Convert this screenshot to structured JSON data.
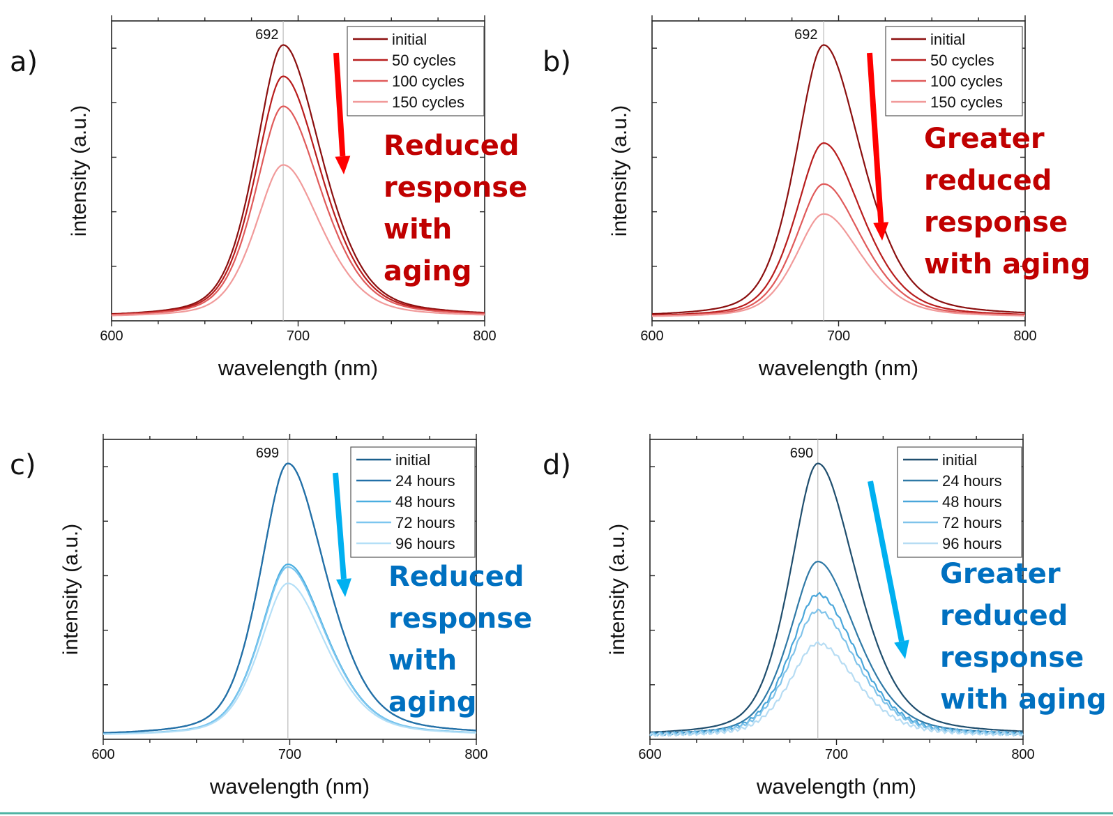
{
  "panels": [
    {
      "letter": "a)",
      "peak_label": "692",
      "note_lines": [
        "Reduced",
        "response",
        "with",
        "aging"
      ],
      "note_color": "#c00000",
      "arrow_color": "#ff0000"
    },
    {
      "letter": "b)",
      "peak_label": "692",
      "note_lines": [
        "Greater",
        "reduced",
        "response",
        "with aging"
      ],
      "note_color": "#c00000",
      "arrow_color": "#ff0000"
    },
    {
      "letter": "c)",
      "peak_label": "699",
      "note_lines": [
        "Reduced",
        "response",
        "with",
        "aging"
      ],
      "note_color": "#0070c0",
      "arrow_color": "#00b0f0"
    },
    {
      "letter": "d)",
      "peak_label": "690",
      "note_lines": [
        "Greater",
        "reduced",
        "response",
        "with aging"
      ],
      "note_color": "#0070c0",
      "arrow_color": "#00b0f0"
    }
  ],
  "chart_data": [
    {
      "type": "line",
      "xlabel": "wavelength (nm)",
      "ylabel": "intensity (a.u.)",
      "xlim": [
        600,
        800
      ],
      "ylim": [
        0,
        1.1
      ],
      "xticks": [
        "600",
        "700",
        "800"
      ],
      "peak_wavelength": 692,
      "legend_position": "top-right",
      "series": [
        {
          "name": "initial",
          "peak": 1.0,
          "color": "#8b0f0f"
        },
        {
          "name": "50 cycles",
          "peak": 0.885,
          "color": "#b81c1c"
        },
        {
          "name": "100 cycles",
          "peak": 0.775,
          "color": "#e05a5a"
        },
        {
          "name": "150 cycles",
          "peak": 0.56,
          "color": "#f19a9a"
        }
      ]
    },
    {
      "type": "line",
      "xlabel": "wavelength (nm)",
      "ylabel": "intensity (a.u.)",
      "xlim": [
        600,
        800
      ],
      "ylim": [
        0,
        1.1
      ],
      "xticks": [
        "600",
        "700",
        "800"
      ],
      "peak_wavelength": 692,
      "legend_position": "top-right",
      "series": [
        {
          "name": "initial",
          "peak": 1.0,
          "color": "#8b0f0f"
        },
        {
          "name": "50 cycles",
          "peak": 0.64,
          "color": "#b81c1c"
        },
        {
          "name": "100 cycles",
          "peak": 0.49,
          "color": "#e05a5a"
        },
        {
          "name": "150 cycles",
          "peak": 0.38,
          "color": "#f19a9a"
        }
      ]
    },
    {
      "type": "line",
      "xlabel": "wavelength (nm)",
      "ylabel": "intensity (a.u.)",
      "xlim": [
        600,
        800
      ],
      "ylim": [
        0,
        1.1
      ],
      "xticks": [
        "600",
        "700",
        "800"
      ],
      "peak_wavelength": 699,
      "legend_position": "top-right",
      "series": [
        {
          "name": "initial",
          "peak": 1.0,
          "color": "#1a5f8c"
        },
        {
          "name": "24 hours",
          "peak": 1.0,
          "color": "#2270a8"
        },
        {
          "name": "48 hours",
          "peak": 0.63,
          "color": "#4aaee0"
        },
        {
          "name": "72 hours",
          "peak": 0.62,
          "color": "#7cc6ef"
        },
        {
          "name": "96 hours",
          "peak": 0.56,
          "color": "#b4dff7"
        }
      ]
    },
    {
      "type": "line",
      "xlabel": "wavelength (nm)",
      "ylabel": "intensity (a.u.)",
      "xlim": [
        600,
        800
      ],
      "ylim": [
        0,
        1.1
      ],
      "xticks": [
        "600",
        "700",
        "800"
      ],
      "peak_wavelength": 690,
      "legend_position": "top-right",
      "series": [
        {
          "name": "initial",
          "peak": 1.0,
          "color": "#1f4e6e"
        },
        {
          "name": "24 hours",
          "peak": 0.64,
          "color": "#2f79a6"
        },
        {
          "name": "48 hours",
          "peak": 0.52,
          "color": "#49a6da"
        },
        {
          "name": "72 hours",
          "peak": 0.46,
          "color": "#7fc3ea"
        },
        {
          "name": "96 hours",
          "peak": 0.34,
          "color": "#b6dcf3"
        }
      ]
    }
  ]
}
